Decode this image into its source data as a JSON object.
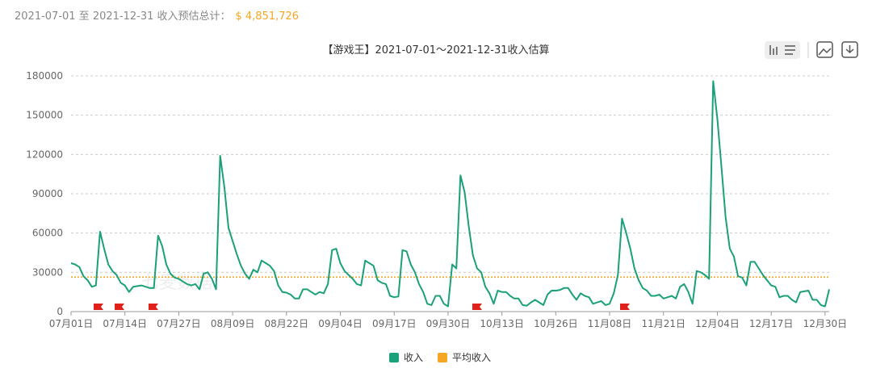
{
  "header": {
    "text": "2021-07-01 至 2021-12-31 收入预估总计：",
    "total": "$ 4,851,726"
  },
  "chart_data": {
    "type": "line",
    "title": "【游戏王】2021-07-01～2021-12-31收入估算",
    "watermark": "七麦数据",
    "categories": [
      "07月01日",
      null,
      null,
      null,
      null,
      null,
      null,
      null,
      null,
      null,
      null,
      null,
      null,
      "07月14日",
      null,
      null,
      null,
      null,
      null,
      null,
      null,
      null,
      null,
      null,
      null,
      null,
      "07月27日",
      null,
      null,
      null,
      null,
      null,
      null,
      null,
      null,
      null,
      null,
      null,
      null,
      "08月09日",
      null,
      null,
      null,
      null,
      null,
      null,
      null,
      null,
      null,
      null,
      null,
      null,
      "08月22日",
      null,
      null,
      null,
      null,
      null,
      null,
      null,
      null,
      null,
      null,
      null,
      null,
      "09月04日",
      null,
      null,
      null,
      null,
      null,
      null,
      null,
      null,
      null,
      null,
      null,
      null,
      "09月17日",
      null,
      null,
      null,
      null,
      null,
      null,
      null,
      null,
      null,
      null,
      null,
      null,
      "09月30日",
      null,
      null,
      null,
      null,
      null,
      null,
      null,
      null,
      null,
      null,
      null,
      null,
      "10月13日",
      null,
      null,
      null,
      null,
      null,
      null,
      null,
      null,
      null,
      null,
      null,
      null,
      "10月26日",
      null,
      null,
      null,
      null,
      null,
      null,
      null,
      null,
      null,
      null,
      null,
      null,
      "11月08日",
      null,
      null,
      null,
      null,
      null,
      null,
      null,
      null,
      null,
      null,
      null,
      null,
      "11月21日",
      null,
      null,
      null,
      null,
      null,
      null,
      null,
      null,
      null,
      null,
      null,
      null,
      "12月04日",
      null,
      null,
      null,
      null,
      null,
      null,
      null,
      null,
      null,
      null,
      null,
      null,
      "12月17日",
      null,
      null,
      null,
      null,
      null,
      null,
      null,
      null,
      null,
      null,
      null,
      null,
      "12月30日",
      null
    ],
    "series": [
      {
        "name": "收入",
        "color": "#1aa179",
        "values": [
          37000,
          36000,
          34000,
          27000,
          24000,
          19000,
          20000,
          61000,
          48000,
          36000,
          31000,
          28000,
          22000,
          20000,
          15000,
          19000,
          19500,
          20000,
          19000,
          18000,
          18000,
          58000,
          50000,
          36000,
          29000,
          26000,
          25000,
          23000,
          21000,
          20000,
          21000,
          17000,
          29000,
          30000,
          25000,
          17000,
          119000,
          95000,
          64000,
          54000,
          44000,
          35000,
          29000,
          25000,
          32000,
          30000,
          39000,
          37000,
          35000,
          31000,
          20000,
          15000,
          14500,
          13000,
          10000,
          10000,
          17000,
          17000,
          15000,
          13000,
          15000,
          14000,
          21000,
          47000,
          48000,
          37000,
          31000,
          28000,
          25000,
          21000,
          20000,
          39000,
          37000,
          35000,
          24000,
          22000,
          21000,
          12000,
          11000,
          11500,
          47000,
          46000,
          36000,
          30000,
          21000,
          15000,
          6000,
          5000,
          12000,
          12000,
          6000,
          4000,
          36000,
          33000,
          104000,
          91000,
          65000,
          43000,
          33000,
          30000,
          19000,
          14000,
          6000,
          16000,
          15000,
          15000,
          12000,
          10000,
          10000,
          5000,
          4500,
          7000,
          9000,
          7000,
          5000,
          13000,
          16000,
          16000,
          16500,
          18000,
          18000,
          13000,
          9000,
          14000,
          12000,
          11000,
          6000,
          7000,
          8000,
          5000,
          6000,
          14000,
          28000,
          71000,
          60000,
          48000,
          33000,
          24000,
          18000,
          16000,
          12000,
          12000,
          13000,
          10000,
          11000,
          12000,
          10000,
          19000,
          21000,
          15000,
          6000,
          31000,
          30000,
          28000,
          25000,
          176000,
          147000,
          110000,
          72000,
          48000,
          42000,
          27000,
          26000,
          20000,
          38000,
          38000,
          33000,
          28000,
          24000,
          20000,
          19000,
          11000,
          12000,
          12000,
          9000,
          7000,
          15000,
          15500,
          16000,
          9000,
          9000,
          5000,
          4000,
          17000
        ]
      }
    ],
    "average": {
      "name": "平均收入",
      "color": "#f5a623",
      "value": 26368
    },
    "ylim": [
      0,
      180000
    ],
    "yticks": [
      0,
      30000,
      60000,
      90000,
      120000,
      150000,
      180000
    ],
    "grid": true
  }
}
